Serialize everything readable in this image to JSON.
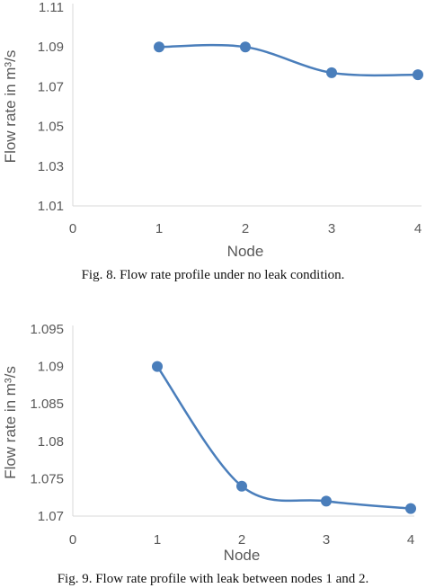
{
  "chart_data": [
    {
      "type": "line",
      "smooth": true,
      "title": "",
      "xlabel": "Node",
      "ylabel": "Flow rate in m³/s",
      "x": [
        1,
        2,
        3,
        4
      ],
      "series": [
        {
          "values": [
            1.09,
            1.09,
            1.077,
            1.076
          ]
        }
      ],
      "xlim": [
        0,
        4
      ],
      "xticks": [
        "0",
        "1",
        "2",
        "3",
        "4"
      ],
      "ylim": [
        1.01,
        1.11
      ],
      "yticks": [
        "1.01",
        "1.03",
        "1.05",
        "1.07",
        "1.09",
        "1.11"
      ],
      "grid": false,
      "legend": "none",
      "line_color": "#4a7ebb",
      "axis_color": "#d9d9d9",
      "caption": "Fig. 8. Flow rate profile under no leak condition."
    },
    {
      "type": "line",
      "smooth": true,
      "title": "",
      "xlabel": "Node",
      "ylabel": "Flow rate in m³/s",
      "x": [
        1,
        2,
        3,
        4
      ],
      "series": [
        {
          "values": [
            1.09,
            1.074,
            1.072,
            1.071
          ]
        }
      ],
      "xlim": [
        0,
        4
      ],
      "xticks": [
        "0",
        "1",
        "2",
        "3",
        "4"
      ],
      "ylim": [
        1.07,
        1.095
      ],
      "yticks": [
        "1.07",
        "1.075",
        "1.08",
        "1.085",
        "1.09",
        "1.095"
      ],
      "grid": false,
      "legend": "none",
      "line_color": "#4a7ebb",
      "axis_color": "#d9d9d9",
      "caption": "Fig. 9. Flow rate profile with leak between nodes 1 and 2."
    }
  ]
}
